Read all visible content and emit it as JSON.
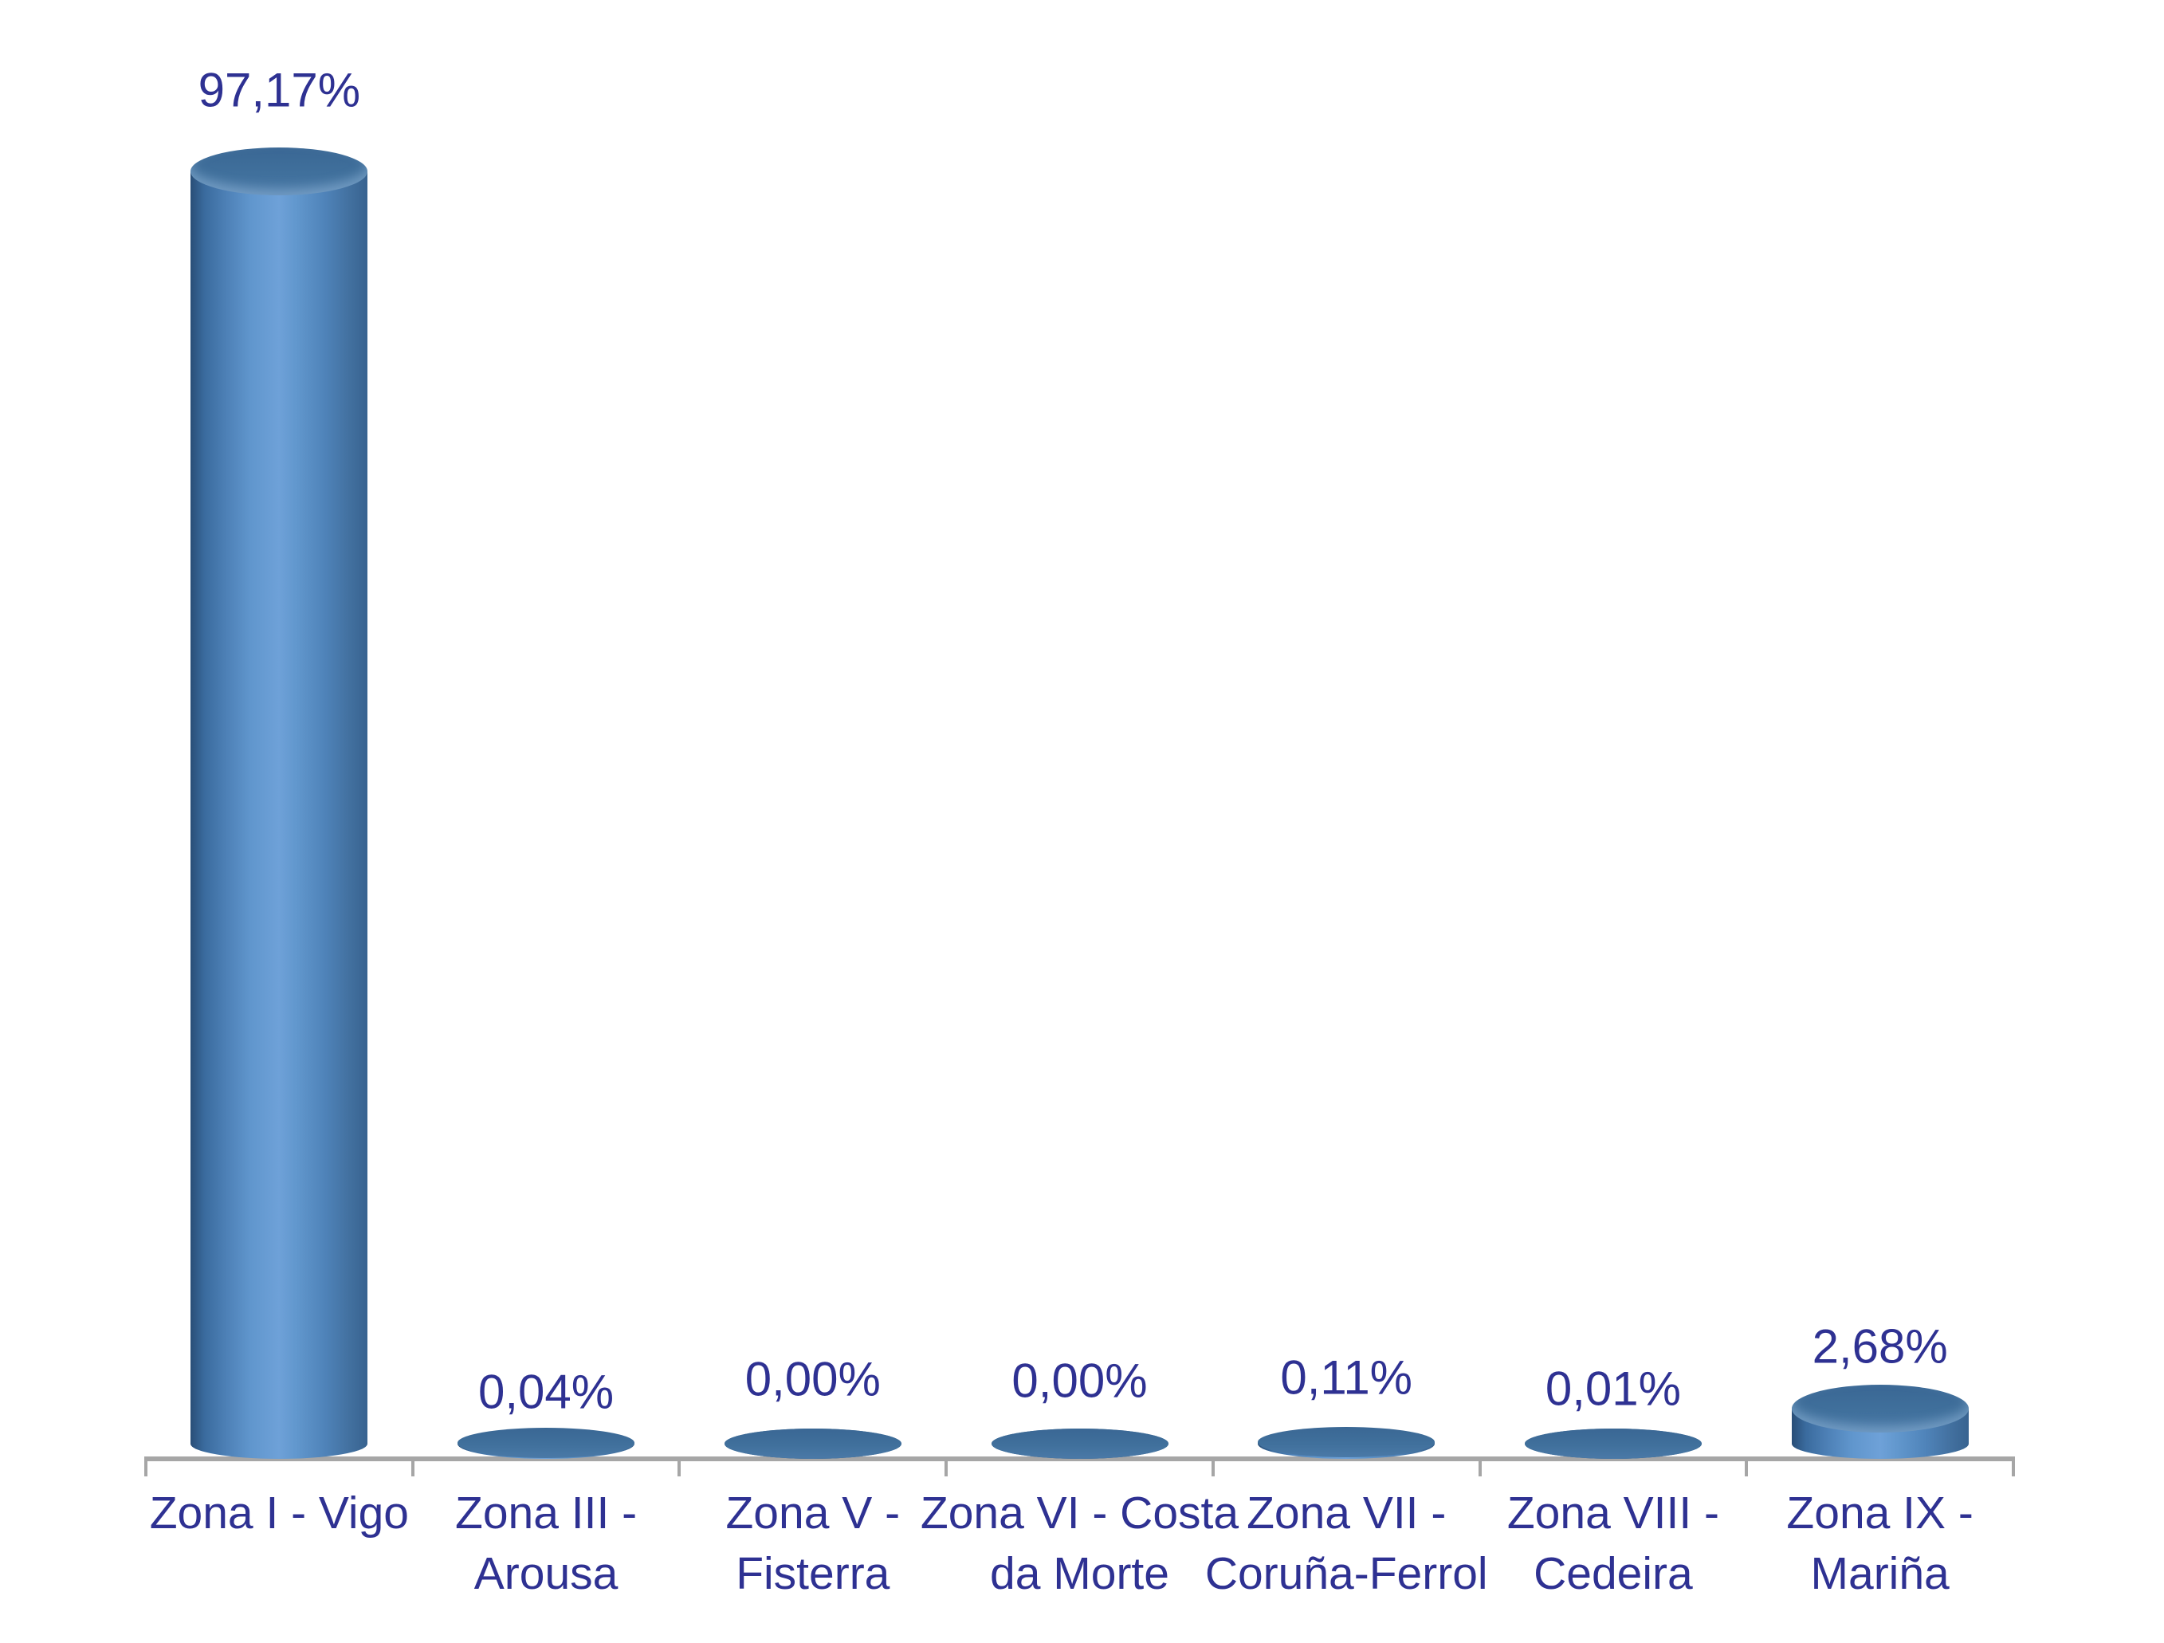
{
  "chart_data": {
    "type": "bar",
    "subtype": "3d-cylinder-vertical",
    "title": "",
    "xlabel": "",
    "ylabel": "",
    "categories": [
      "Zona I - Vigo",
      "Zona III - Arousa",
      "Zona V - Fisterra",
      "Zona VI - Costa da Morte",
      "Zona VII - Coruña-Ferrol",
      "Zona VIII - Cedeira",
      "Zona IX - Mariña"
    ],
    "category_label_lines": [
      [
        "Zona I - Vigo"
      ],
      [
        "Zona III -",
        "Arousa"
      ],
      [
        "Zona V -",
        "Fisterra"
      ],
      [
        "Zona VI - Costa",
        "da Morte"
      ],
      [
        "Zona VII -",
        "Coruña-Ferrol"
      ],
      [
        "Zona VIII -",
        "Cedeira"
      ],
      [
        "Zona IX -",
        "Mariña"
      ]
    ],
    "values": [
      97.17,
      0.04,
      0.0,
      0.0,
      0.11,
      0.01,
      2.68
    ],
    "data_labels": [
      "97,17%",
      "0,04%",
      "0,00%",
      "0,00%",
      "0,11%",
      "0,01%",
      "2,68%"
    ],
    "unit": "%",
    "ylim": [
      0,
      100
    ],
    "grid": false,
    "legend": false,
    "colors": {
      "label_text": "#2E3192",
      "axis_line": "#A6A6A6",
      "cylinder_side_dark": "#294E77",
      "cylinder_side_light": "#6EA1D8",
      "cylinder_top": "#3A6794",
      "background": "#FFFFFF"
    }
  }
}
